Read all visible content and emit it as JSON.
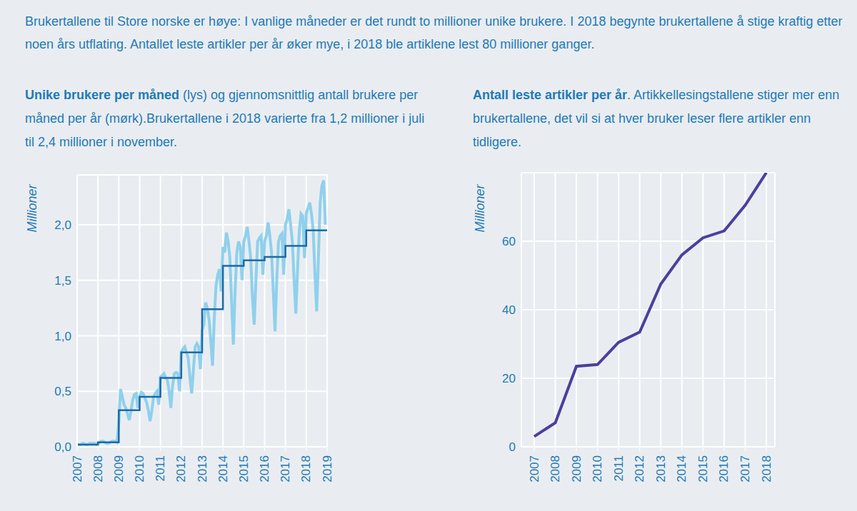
{
  "header": "Brukertallene til Store norske er høye: I vanlige måneder er det rundt  to millioner unike brukere. I 2018 begynte brukertallene å stige kraftig etter noen års utflating. Antallet leste artikler per år øker mye, i 2018 ble artiklene lest 80 millioner ganger.",
  "chart_data": [
    {
      "type": "line",
      "title": "Unike brukere per måned",
      "subtitle": " (lys) og gjennomsnittlig antall brukere per måned per år (mørk).Brukertallene i 2018 varierte fra 1,2 millioner i juli til 2,4  millioner i november.",
      "ylabel": "Millioner",
      "xlim": [
        2007,
        2019
      ],
      "xticks": [
        2007,
        2008,
        2009,
        2010,
        2011,
        2012,
        2013,
        2014,
        2015,
        2016,
        2017,
        2018,
        2019
      ],
      "ylim": [
        0,
        2.45
      ],
      "yticks": [
        {
          "value": 0,
          "label": "0,0"
        },
        {
          "value": 0.5,
          "label": "0,5"
        },
        {
          "value": 1,
          "label": "1,0"
        },
        {
          "value": 1.5,
          "label": "1,5"
        },
        {
          "value": 2,
          "label": "2,0"
        }
      ],
      "grid": true,
      "series": [
        {
          "color": "#8fd0ec",
          "line_style": "solid",
          "x": [
            2007,
            2007.083,
            2007.167,
            2007.25,
            2007.333,
            2007.417,
            2007.5,
            2007.583,
            2007.667,
            2007.75,
            2007.833,
            2007.917,
            2008,
            2008.083,
            2008.167,
            2008.25,
            2008.333,
            2008.417,
            2008.5,
            2008.583,
            2008.667,
            2008.75,
            2008.833,
            2008.917,
            2009,
            2009.083,
            2009.167,
            2009.25,
            2009.333,
            2009.417,
            2009.5,
            2009.583,
            2009.667,
            2009.75,
            2009.833,
            2009.917,
            2010,
            2010.083,
            2010.167,
            2010.25,
            2010.333,
            2010.417,
            2010.5,
            2010.583,
            2010.667,
            2010.75,
            2010.833,
            2010.917,
            2011,
            2011.083,
            2011.167,
            2011.25,
            2011.333,
            2011.417,
            2011.5,
            2011.583,
            2011.667,
            2011.75,
            2011.833,
            2011.917,
            2012,
            2012.083,
            2012.167,
            2012.25,
            2012.333,
            2012.417,
            2012.5,
            2012.583,
            2012.667,
            2012.75,
            2012.833,
            2012.917,
            2013,
            2013.083,
            2013.167,
            2013.25,
            2013.333,
            2013.417,
            2013.5,
            2013.583,
            2013.667,
            2013.75,
            2013.833,
            2013.917,
            2014,
            2014.083,
            2014.167,
            2014.25,
            2014.333,
            2014.417,
            2014.5,
            2014.583,
            2014.667,
            2014.75,
            2014.833,
            2014.917,
            2015,
            2015.083,
            2015.167,
            2015.25,
            2015.333,
            2015.417,
            2015.5,
            2015.583,
            2015.667,
            2015.75,
            2015.833,
            2015.917,
            2016,
            2016.083,
            2016.167,
            2016.25,
            2016.333,
            2016.417,
            2016.5,
            2016.583,
            2016.667,
            2016.75,
            2016.833,
            2016.917,
            2017,
            2017.083,
            2017.167,
            2017.25,
            2017.333,
            2017.417,
            2017.5,
            2017.583,
            2017.667,
            2017.75,
            2017.833,
            2017.917,
            2018,
            2018.083,
            2018.167,
            2018.25,
            2018.333,
            2018.417,
            2018.5,
            2018.583,
            2018.667,
            2018.75,
            2018.833,
            2018.917
          ],
          "values": [
            0.02,
            0.02,
            0.02,
            0.03,
            0.03,
            0.02,
            0.02,
            0.03,
            0.03,
            0.03,
            0.03,
            0.02,
            0.03,
            0.04,
            0.05,
            0.05,
            0.04,
            0.03,
            0.03,
            0.04,
            0.05,
            0.05,
            0.05,
            0.04,
            0.22,
            0.52,
            0.45,
            0.38,
            0.35,
            0.3,
            0.24,
            0.32,
            0.42,
            0.47,
            0.48,
            0.35,
            0.45,
            0.49,
            0.48,
            0.44,
            0.4,
            0.33,
            0.23,
            0.32,
            0.45,
            0.48,
            0.5,
            0.38,
            0.63,
            0.64,
            0.66,
            0.62,
            0.6,
            0.5,
            0.35,
            0.55,
            0.66,
            0.67,
            0.66,
            0.5,
            0.85,
            0.88,
            0.9,
            0.85,
            0.8,
            0.62,
            0.48,
            0.7,
            0.9,
            0.93,
            0.9,
            0.7,
            1.05,
            1.1,
            1.3,
            1.25,
            1.15,
            0.95,
            0.73,
            1.15,
            1.45,
            1.55,
            1.6,
            1.4,
            1.8,
            1.75,
            1.93,
            1.85,
            1.7,
            1.3,
            0.92,
            1.4,
            1.75,
            1.85,
            1.8,
            1.5,
            1.85,
            1.9,
            1.98,
            1.85,
            1.7,
            1.35,
            1.1,
            1.5,
            1.85,
            1.88,
            1.9,
            1.55,
            1.85,
            1.9,
            2.02,
            1.9,
            1.75,
            1.4,
            1.04,
            1.5,
            1.85,
            1.9,
            1.92,
            1.55,
            2,
            2.05,
            2.14,
            2,
            1.85,
            1.5,
            1.2,
            1.6,
            1.95,
            2.1,
            2.08,
            1.7,
            2.1,
            2.15,
            2.2,
            2.1,
            1.95,
            1.55,
            1.22,
            1.7,
            2.2,
            2.35,
            2.4,
            2
          ]
        },
        {
          "color": "#1b6aa5",
          "line_style": "step",
          "x": [
            2007,
            2008,
            2009,
            2010,
            2011,
            2012,
            2013,
            2014,
            2015,
            2016,
            2017,
            2018
          ],
          "values": [
            0.02,
            0.04,
            0.33,
            0.45,
            0.62,
            0.85,
            1.24,
            1.63,
            1.68,
            1.71,
            1.81,
            1.95
          ]
        }
      ]
    },
    {
      "type": "line",
      "title": "Antall leste artikler per år",
      "subtitle": ". Artikkellesingstallene stiger mer enn brukertallene, det vil si at hver bruker leser flere artikler enn tidligere.",
      "ylabel": "Millioner",
      "categories": [
        "2007",
        "2008",
        "2009",
        "2010",
        "2011",
        "2012",
        "2013",
        "2014",
        "2015",
        "2016",
        "2017",
        "2018"
      ],
      "values": [
        3,
        7,
        23.5,
        24,
        30.5,
        33.5,
        47.5,
        56,
        61,
        63,
        70.5,
        80
      ],
      "color": "#4b3f9e",
      "ylim": [
        0,
        80
      ],
      "yticks": [
        0,
        20,
        40,
        60
      ],
      "grid": true
    }
  ]
}
